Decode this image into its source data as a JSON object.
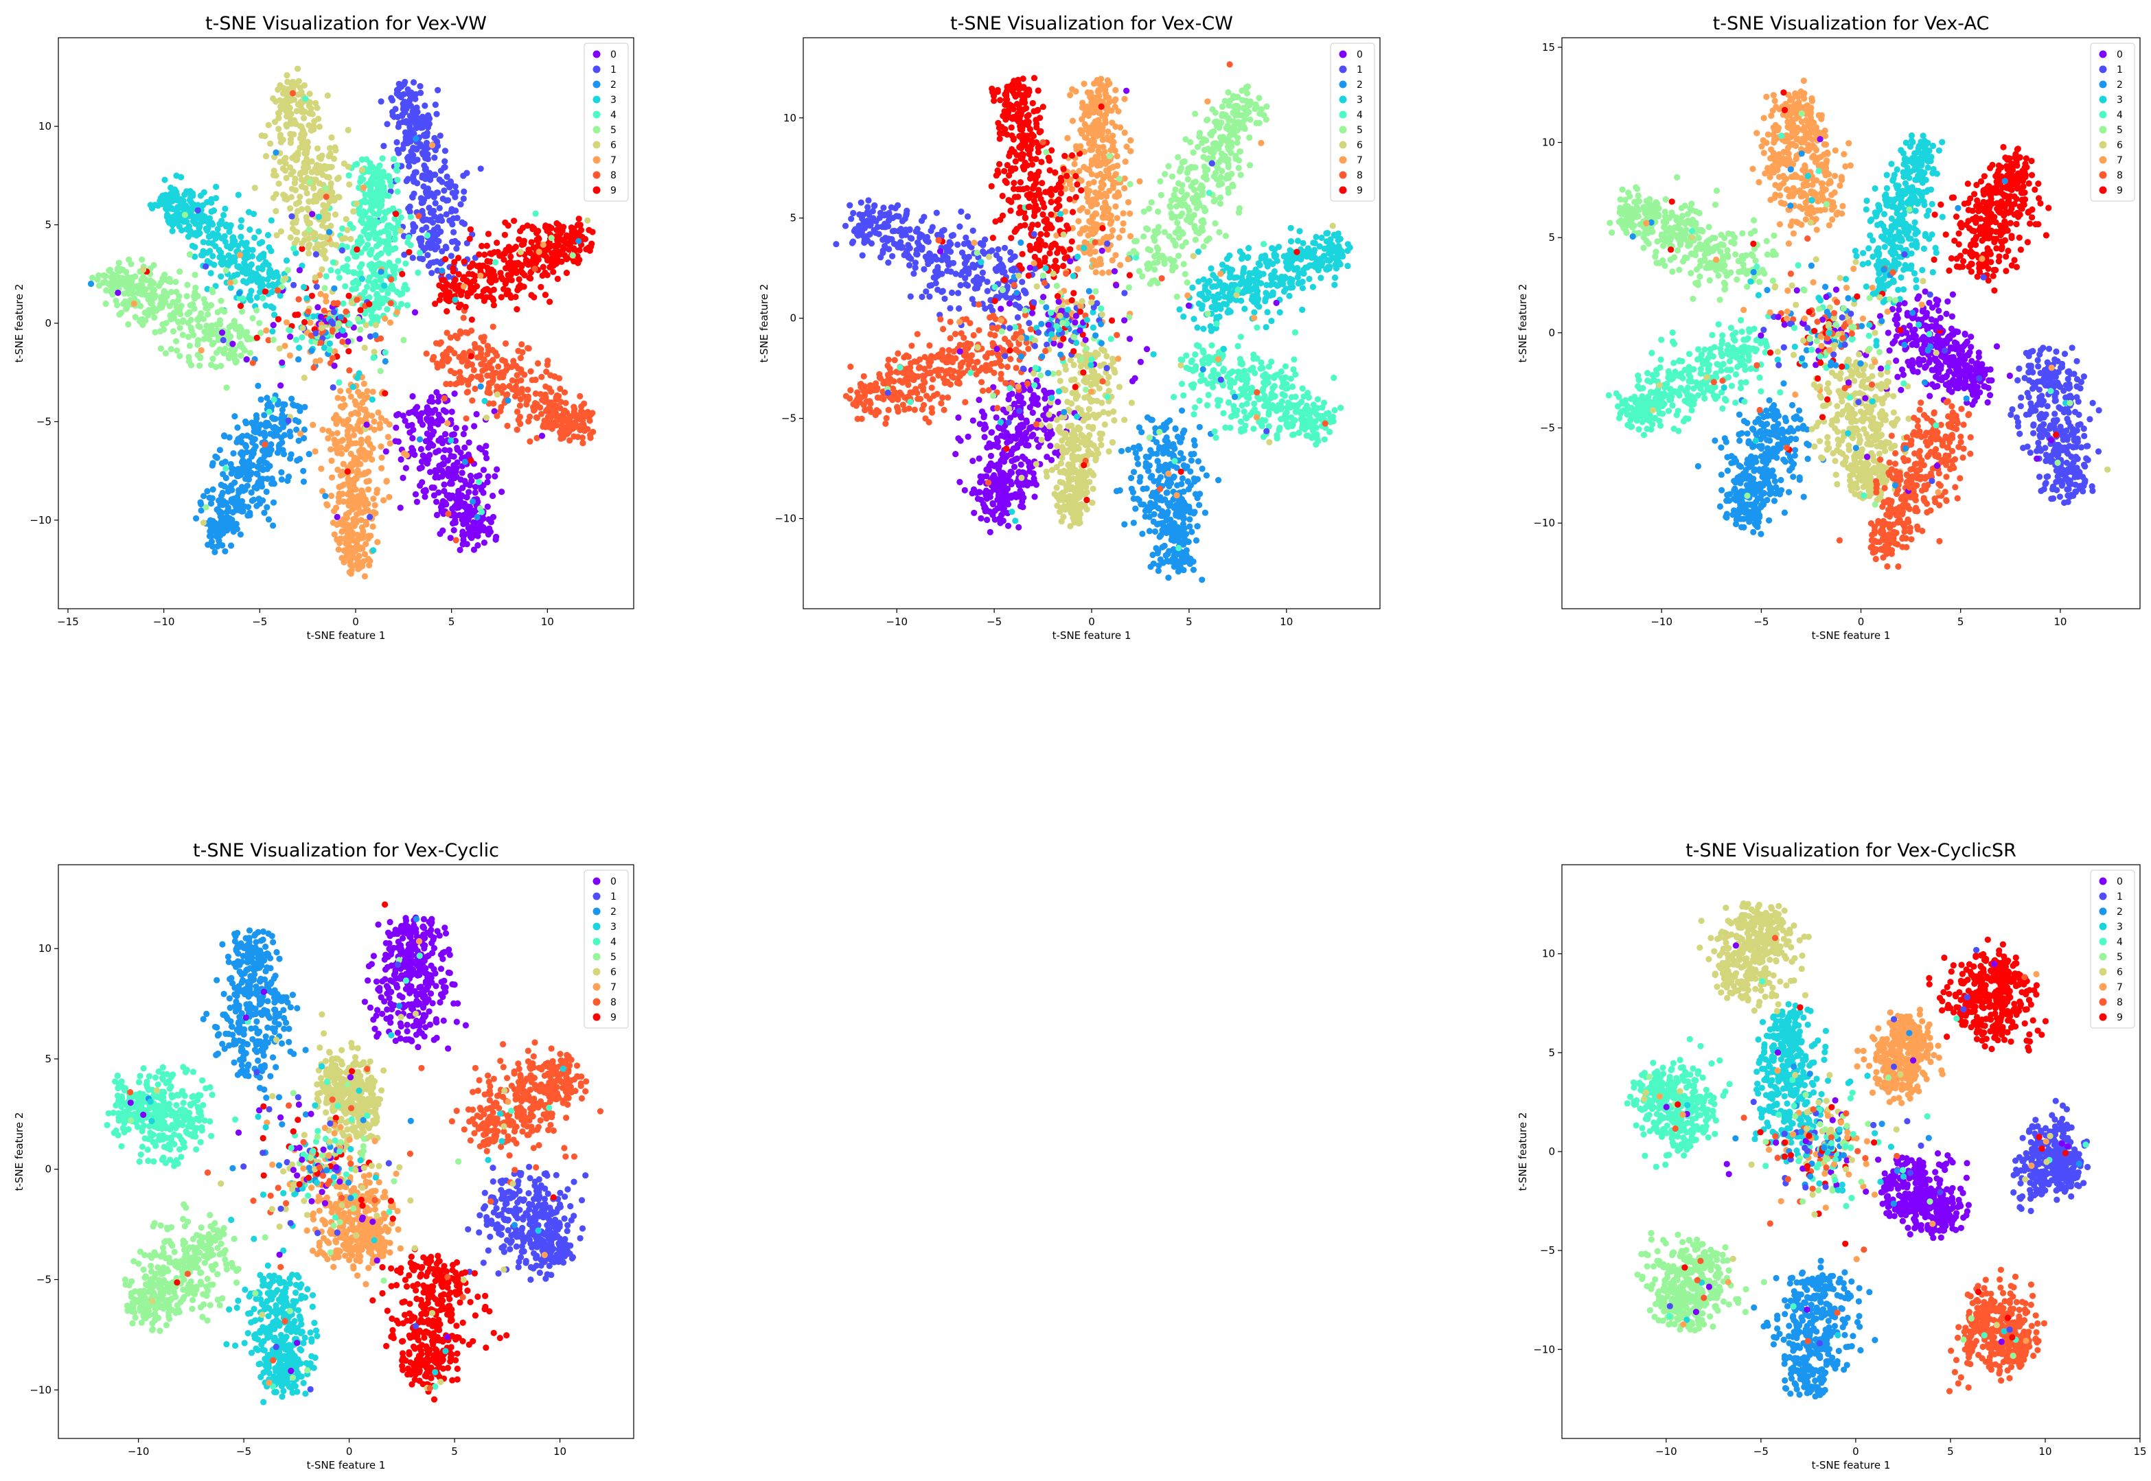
{
  "chart_data": [
    {
      "type": "scatter",
      "title": "t-SNE Visualization for Vex-VW",
      "xlabel": "t-SNE feature 1",
      "ylabel": "t-SNE feature 2",
      "xlim": [
        -15.5,
        14.5
      ],
      "ylim": [
        -14.5,
        14.5
      ],
      "xticks": [
        -15,
        -10,
        -5,
        0,
        5,
        10
      ],
      "yticks": [
        -10,
        -5,
        0,
        5,
        10
      ],
      "grid": false,
      "legend": "top-right",
      "legend_entries": [
        "0",
        "1",
        "2",
        "3",
        "4",
        "5",
        "6",
        "7",
        "8",
        "9"
      ],
      "clusters": [
        {
          "label": "0",
          "from": [
            3.5,
            -4
          ],
          "to": [
            6.5,
            -11
          ],
          "width": 2.2
        },
        {
          "label": "1",
          "from": [
            4.5,
            2.5
          ],
          "to": [
            2.5,
            12
          ],
          "width": 2.0
        },
        {
          "label": "2",
          "from": [
            -3.5,
            -4
          ],
          "to": [
            -7.5,
            -11
          ],
          "width": 2.0
        },
        {
          "label": "3",
          "from": [
            -4,
            1.5
          ],
          "to": [
            -10,
            6.5
          ],
          "width": 1.9
        },
        {
          "label": "4",
          "from": [
            1,
            0
          ],
          "to": [
            1,
            8
          ],
          "width": 1.9
        },
        {
          "label": "5",
          "from": [
            -5.5,
            -1.5
          ],
          "to": [
            -13,
            2.5
          ],
          "width": 2.0
        },
        {
          "label": "6",
          "from": [
            -1.5,
            3.5
          ],
          "to": [
            -3.5,
            12
          ],
          "width": 2.2
        },
        {
          "label": "7",
          "from": [
            0,
            -3
          ],
          "to": [
            0,
            -12.5
          ],
          "width": 1.7
        },
        {
          "label": "8",
          "from": [
            4.5,
            -1
          ],
          "to": [
            12,
            -5.5
          ],
          "width": 2.0
        },
        {
          "label": "9",
          "from": [
            4.5,
            1.5
          ],
          "to": [
            12,
            4.5
          ],
          "width": 2.0
        }
      ]
    },
    {
      "type": "scatter",
      "title": "t-SNE Visualization for Vex-CW",
      "xlabel": "t-SNE feature 1",
      "ylabel": "t-SNE feature 2",
      "xlim": [
        -14.8,
        14.8
      ],
      "ylim": [
        -14.5,
        14.0
      ],
      "xticks": [
        -10,
        -5,
        0,
        5,
        10
      ],
      "yticks": [
        -10,
        -5,
        0,
        5,
        10
      ],
      "grid": false,
      "legend": "top-right",
      "legend_entries": [
        "0",
        "1",
        "2",
        "3",
        "4",
        "5",
        "6",
        "7",
        "8",
        "9"
      ],
      "clusters": [
        {
          "label": "0",
          "from": [
            -3,
            -3
          ],
          "to": [
            -5,
            -10
          ],
          "width": 2.3
        },
        {
          "label": "1",
          "from": [
            -3,
            1
          ],
          "to": [
            -12,
            5
          ],
          "width": 2.2
        },
        {
          "label": "2",
          "from": [
            3.5,
            -5
          ],
          "to": [
            4.5,
            -12.5
          ],
          "width": 2.0
        },
        {
          "label": "3",
          "from": [
            5,
            0.5
          ],
          "to": [
            13,
            3.5
          ],
          "width": 1.8
        },
        {
          "label": "4",
          "from": [
            5,
            -2
          ],
          "to": [
            12,
            -5.5
          ],
          "width": 2.2
        },
        {
          "label": "5",
          "from": [
            3,
            2
          ],
          "to": [
            8,
            11
          ],
          "width": 2.0
        },
        {
          "label": "6",
          "from": [
            0,
            -1.5
          ],
          "to": [
            -1,
            -10
          ],
          "width": 1.7
        },
        {
          "label": "7",
          "from": [
            0,
            2.5
          ],
          "to": [
            0.5,
            11.5
          ],
          "width": 1.8
        },
        {
          "label": "8",
          "from": [
            -3,
            -1
          ],
          "to": [
            -12,
            -4
          ],
          "width": 2.3
        },
        {
          "label": "9",
          "from": [
            -2,
            2
          ],
          "to": [
            -4,
            11.5
          ],
          "width": 2.0
        }
      ]
    },
    {
      "type": "scatter",
      "title": "t-SNE Visualization for Vex-AC",
      "xlabel": "t-SNE feature 1",
      "ylabel": "t-SNE feature 2",
      "xlim": [
        -15.0,
        14.0
      ],
      "ylim": [
        -14.5,
        15.5
      ],
      "xticks": [
        -10,
        -5,
        0,
        5,
        10
      ],
      "yticks": [
        -10,
        -5,
        0,
        5,
        10,
        15
      ],
      "grid": false,
      "legend": "top-right",
      "legend_entries": [
        "0",
        "1",
        "2",
        "3",
        "4",
        "5",
        "6",
        "7",
        "8",
        "9"
      ],
      "clusters": [
        {
          "label": "0",
          "from": [
            2,
            1
          ],
          "to": [
            6,
            -3
          ],
          "width": 2.0
        },
        {
          "label": "1",
          "from": [
            9,
            -1
          ],
          "to": [
            10.5,
            -8.5
          ],
          "width": 2.0
        },
        {
          "label": "2",
          "from": [
            -4,
            -4
          ],
          "to": [
            -6,
            -10
          ],
          "width": 2.0
        },
        {
          "label": "3",
          "from": [
            1,
            2
          ],
          "to": [
            3,
            10
          ],
          "width": 1.8
        },
        {
          "label": "4",
          "from": [
            -5,
            -0.5
          ],
          "to": [
            -12,
            -4.5
          ],
          "width": 2.0
        },
        {
          "label": "5",
          "from": [
            -5,
            3
          ],
          "to": [
            -12,
            6.5
          ],
          "width": 2.1
        },
        {
          "label": "6",
          "from": [
            -0.5,
            -1.5
          ],
          "to": [
            0.5,
            -8.5
          ],
          "width": 2.3
        },
        {
          "label": "7",
          "from": [
            -2.5,
            5.5
          ],
          "to": [
            -3.5,
            12.5
          ],
          "width": 2.3
        },
        {
          "label": "8",
          "from": [
            4.5,
            -4
          ],
          "to": [
            1,
            -11.5
          ],
          "width": 1.9
        },
        {
          "label": "9",
          "from": [
            5.5,
            3
          ],
          "to": [
            8,
            9
          ],
          "width": 2.2
        }
      ]
    },
    {
      "type": "scatter",
      "title": "t-SNE Visualization for Vex-Cyclic",
      "xlabel": "t-SNE feature 1",
      "ylabel": "t-SNE feature 2",
      "xlim": [
        -13.8,
        13.5
      ],
      "ylim": [
        -12.2,
        13.8
      ],
      "xticks": [
        -10,
        -5,
        0,
        5,
        10
      ],
      "yticks": [
        -10,
        -5,
        0,
        5,
        10
      ],
      "grid": false,
      "legend": "top-right",
      "legend_entries": [
        "0",
        "1",
        "2",
        "3",
        "4",
        "5",
        "6",
        "7",
        "8",
        "9"
      ],
      "clusters": [
        {
          "label": "0",
          "from": [
            3,
            6
          ],
          "to": [
            3,
            11
          ],
          "width": 2.2
        },
        {
          "label": "1",
          "from": [
            7,
            -1
          ],
          "to": [
            10,
            -4
          ],
          "width": 2.2
        },
        {
          "label": "2",
          "from": [
            -4.5,
            4
          ],
          "to": [
            -4.5,
            10.5
          ],
          "width": 2.0
        },
        {
          "label": "3",
          "from": [
            -3.5,
            -5
          ],
          "to": [
            -3,
            -10
          ],
          "width": 1.9
        },
        {
          "label": "4",
          "from": [
            -7,
            2
          ],
          "to": [
            -11,
            3
          ],
          "width": 2.3
        },
        {
          "label": "5",
          "from": [
            -6,
            -3
          ],
          "to": [
            -10,
            -6.5
          ],
          "width": 2.2
        },
        {
          "label": "6",
          "from": [
            -1,
            3
          ],
          "to": [
            1,
            3.5
          ],
          "width": 2.5
        },
        {
          "label": "7",
          "from": [
            -1,
            -1.5
          ],
          "to": [
            1.5,
            -3.5
          ],
          "width": 2.2
        },
        {
          "label": "8",
          "from": [
            6,
            1.5
          ],
          "to": [
            10.5,
            4.5
          ],
          "width": 2.2
        },
        {
          "label": "9",
          "from": [
            4.5,
            -4
          ],
          "to": [
            3.5,
            -9.5
          ],
          "width": 2.3
        }
      ]
    },
    {
      "type": "scatter",
      "title": "t-SNE Visualization for Vex-CyclicSR",
      "xlabel": "t-SNE feature 1",
      "ylabel": "t-SNE feature 2",
      "xlim": [
        -15.5,
        15.0
      ],
      "ylim": [
        -14.5,
        14.5
      ],
      "xticks": [
        -10,
        -5,
        0,
        5,
        10,
        15
      ],
      "yticks": [
        -10,
        -5,
        0,
        5,
        10
      ],
      "grid": false,
      "legend": "top-right",
      "legend_entries": [
        "0",
        "1",
        "2",
        "3",
        "4",
        "5",
        "6",
        "7",
        "8",
        "9"
      ],
      "clusters": [
        {
          "label": "0",
          "from": [
            2,
            -1
          ],
          "to": [
            5,
            -3.5
          ],
          "width": 2.1
        },
        {
          "label": "1",
          "from": [
            9,
            0
          ],
          "to": [
            11.5,
            -1
          ],
          "width": 2.4
        },
        {
          "label": "2",
          "from": [
            -2,
            -6
          ],
          "to": [
            -2.5,
            -12
          ],
          "width": 2.2
        },
        {
          "label": "3",
          "from": [
            -3.5,
            0
          ],
          "to": [
            -3.5,
            7
          ],
          "width": 1.8
        },
        {
          "label": "4",
          "from": [
            -8,
            1
          ],
          "to": [
            -11,
            3.5
          ],
          "width": 2.5
        },
        {
          "label": "5",
          "from": [
            -8,
            -5
          ],
          "to": [
            -9.5,
            -8.5
          ],
          "width": 2.6
        },
        {
          "label": "6",
          "from": [
            -6.5,
            8
          ],
          "to": [
            -4.5,
            12
          ],
          "width": 2.6
        },
        {
          "label": "7",
          "from": [
            2,
            3
          ],
          "to": [
            3,
            6.5
          ],
          "width": 1.7
        },
        {
          "label": "8",
          "from": [
            6,
            -8
          ],
          "to": [
            9,
            -10
          ],
          "width": 2.6
        },
        {
          "label": "9",
          "from": [
            6,
            6
          ],
          "to": [
            8,
            9.5
          ],
          "width": 2.6
        }
      ]
    }
  ],
  "colors": {
    "0": "#8000ff",
    "1": "#4d4dfc",
    "2": "#1a96f0",
    "3": "#1ad5dd",
    "4": "#4dfac6",
    "5": "#99f59a",
    "6": "#d4d67b",
    "7": "#ffa256",
    "8": "#ff5930",
    "9": "#ff0000"
  }
}
